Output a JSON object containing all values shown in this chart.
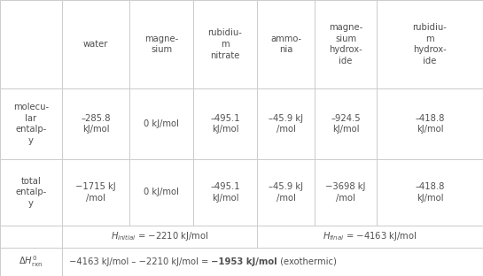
{
  "col_headers": [
    "",
    "water",
    "magne-\nsium",
    "rubidiu-\nm\nnitrate",
    "ammo-\nnia",
    "magne-\nsium\nhydrox-\nide",
    "rubidiu-\nm\nhydrox-\nide"
  ],
  "mol_label": "molecu-\nlar\nentalp-\ny",
  "tot_label": "total\nentalp-\ny",
  "mol_vals": [
    "–285.8\nkJ/mol",
    "0 kJ/mol",
    "–495.1\nkJ/mol",
    "–45.9 kJ\n/mol",
    "–924.5\nkJ/mol",
    "–418.8\nkJ/mol"
  ],
  "tot_vals": [
    "−1715 kJ\n/mol",
    "0 kJ/mol",
    "–495.1\nkJ/mol",
    "–45.9 kJ\n/mol",
    "−3698 kJ\n/mol",
    "–418.8\nkJ/mol"
  ],
  "h_initial_val": "−2210 kJ/mol",
  "h_final_val": "−4163 kJ/mol",
  "delta_prefix": "−4163 kJ/mol – −2210 kJ/mol = ",
  "delta_bold": "−1953 kJ/mol",
  "delta_suffix": " (exothermic)",
  "bg_color": "#ffffff",
  "line_color": "#cccccc",
  "text_color": "#505050",
  "fs": 7.2
}
